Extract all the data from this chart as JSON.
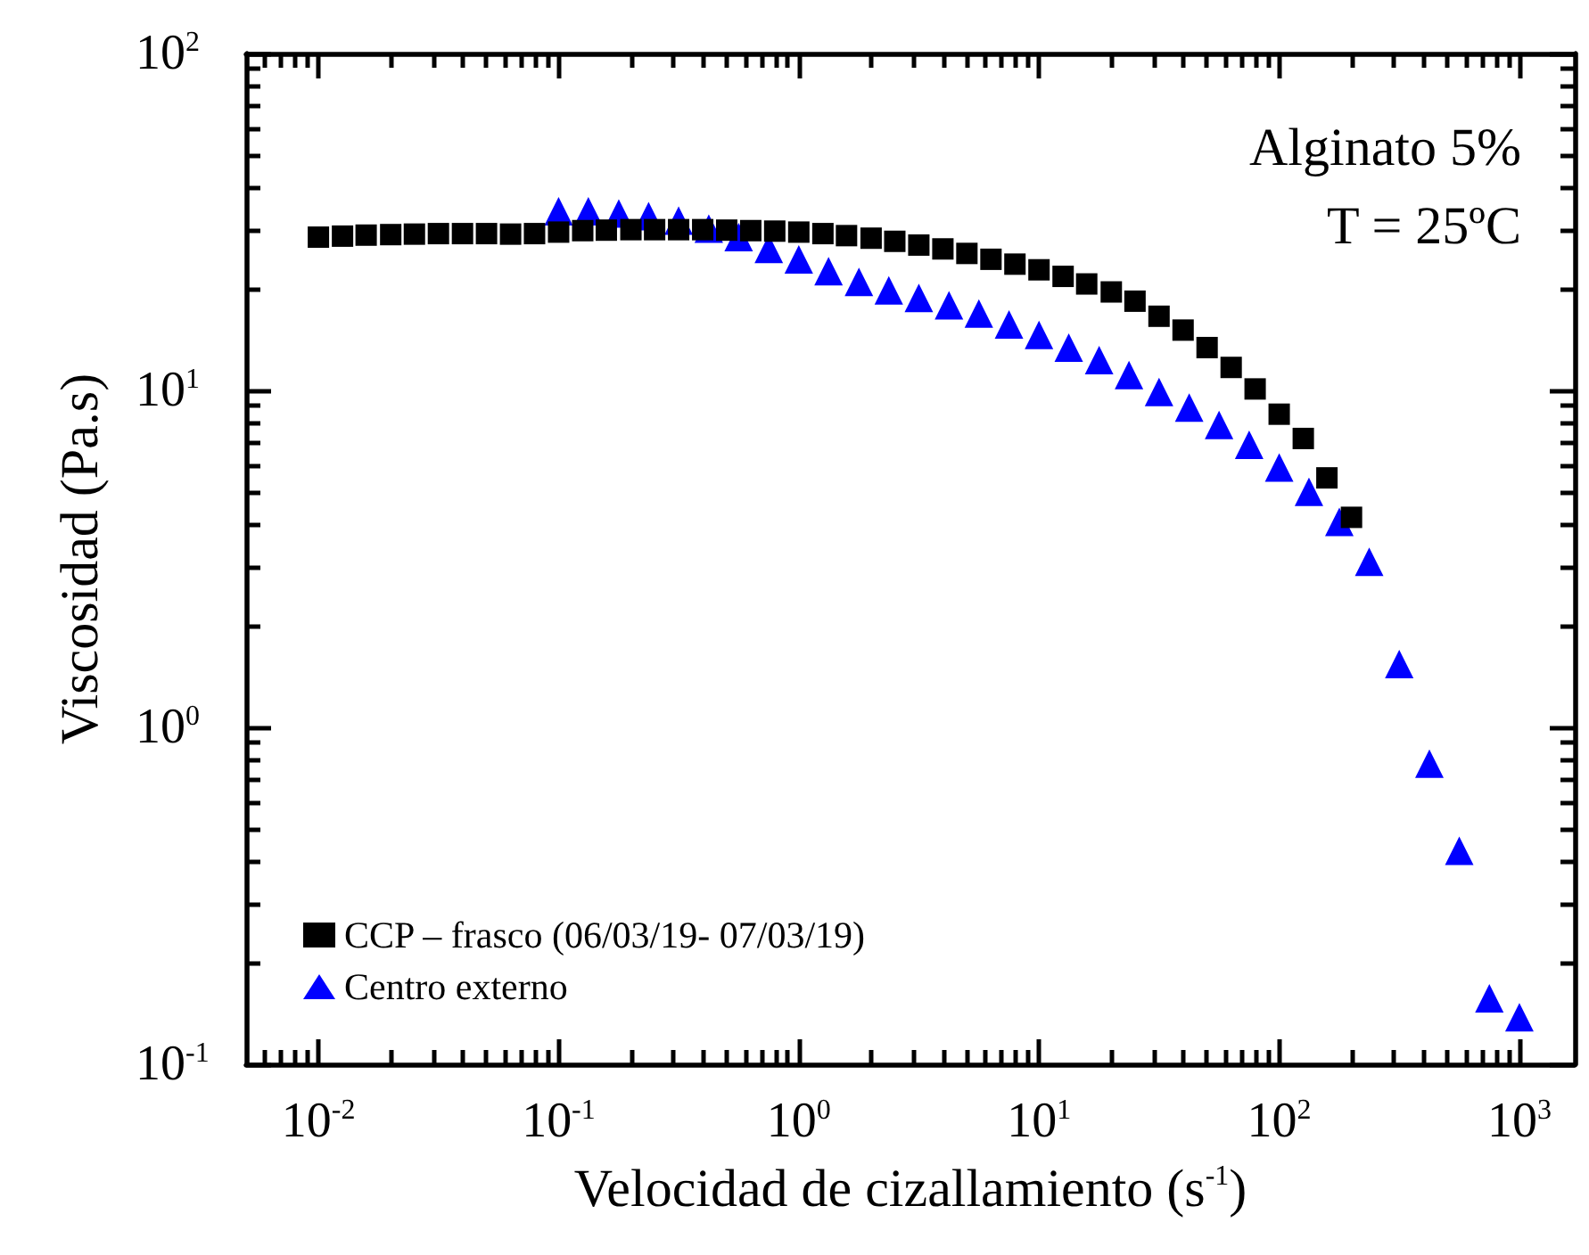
{
  "chart_data": {
    "type": "scatter",
    "xlabel": "Velocidad de cizallamiento (s$^{-1}$)",
    "ylabel": "Viscosidad (Pa.s)",
    "annotations": [
      "Alginato 5%",
      "T = 25ºC"
    ],
    "log": "xy",
    "grid": false,
    "legend": "bottom left",
    "xlim": [
      0.005,
      1700
    ],
    "ylim": [
      0.1,
      100
    ],
    "xticks": [
      {
        "value": 0.006,
        "label": null
      },
      {
        "value": 0.007,
        "label": null
      },
      {
        "value": 0.008,
        "label": null
      },
      {
        "value": 0.009,
        "label": null
      },
      {
        "value": 0.01,
        "label": "10$^{-2}$"
      },
      {
        "value": 0.02,
        "label": null
      },
      {
        "value": 0.03,
        "label": null
      },
      {
        "value": 0.04,
        "label": null
      },
      {
        "value": 0.05,
        "label": null
      },
      {
        "value": 0.06,
        "label": null
      },
      {
        "value": 0.07,
        "label": null
      },
      {
        "value": 0.08,
        "label": null
      },
      {
        "value": 0.09,
        "label": null
      },
      {
        "value": 0.1,
        "label": "10$^{-1}$"
      },
      {
        "value": 0.2,
        "label": null
      },
      {
        "value": 0.3,
        "label": null
      },
      {
        "value": 0.4,
        "label": null
      },
      {
        "value": 0.5,
        "label": null
      },
      {
        "value": 0.6,
        "label": null
      },
      {
        "value": 0.7,
        "label": null
      },
      {
        "value": 0.8,
        "label": null
      },
      {
        "value": 0.9,
        "label": null
      },
      {
        "value": 1,
        "label": "10$^{0}$"
      },
      {
        "value": 2,
        "label": null
      },
      {
        "value": 3,
        "label": null
      },
      {
        "value": 4,
        "label": null
      },
      {
        "value": 5,
        "label": null
      },
      {
        "value": 6,
        "label": null
      },
      {
        "value": 7,
        "label": null
      },
      {
        "value": 8,
        "label": null
      },
      {
        "value": 9,
        "label": null
      },
      {
        "value": 10,
        "label": "10$^{1}$"
      },
      {
        "value": 20,
        "label": null
      },
      {
        "value": 30,
        "label": null
      },
      {
        "value": 40,
        "label": null
      },
      {
        "value": 50,
        "label": null
      },
      {
        "value": 60,
        "label": null
      },
      {
        "value": 70,
        "label": null
      },
      {
        "value": 80,
        "label": null
      },
      {
        "value": 90,
        "label": null
      },
      {
        "value": 100,
        "label": "10$^{2}$"
      },
      {
        "value": 200,
        "label": null
      },
      {
        "value": 300,
        "label": null
      },
      {
        "value": 400,
        "label": null
      },
      {
        "value": 500,
        "label": null
      },
      {
        "value": 600,
        "label": null
      },
      {
        "value": 700,
        "label": null
      },
      {
        "value": 800,
        "label": null
      },
      {
        "value": 900,
        "label": null
      },
      {
        "value": 1000,
        "label": "10$^{3}$"
      }
    ],
    "yticks": [
      {
        "value": 0.1,
        "label": "10$^{-1}$"
      },
      {
        "value": 0.2,
        "label": null
      },
      {
        "value": 0.3,
        "label": null
      },
      {
        "value": 0.4,
        "label": null
      },
      {
        "value": 0.5,
        "label": null
      },
      {
        "value": 0.6,
        "label": null
      },
      {
        "value": 0.7,
        "label": null
      },
      {
        "value": 0.8,
        "label": null
      },
      {
        "value": 0.9,
        "label": null
      },
      {
        "value": 1,
        "label": "10$^{0}$"
      },
      {
        "value": 2,
        "label": null
      },
      {
        "value": 3,
        "label": null
      },
      {
        "value": 4,
        "label": null
      },
      {
        "value": 5,
        "label": null
      },
      {
        "value": 6,
        "label": null
      },
      {
        "value": 7,
        "label": null
      },
      {
        "value": 8,
        "label": null
      },
      {
        "value": 9,
        "label": null
      },
      {
        "value": 10,
        "label": "10$^{1}$"
      },
      {
        "value": 20,
        "label": null
      },
      {
        "value": 30,
        "label": null
      },
      {
        "value": 40,
        "label": null
      },
      {
        "value": 50,
        "label": null
      },
      {
        "value": 60,
        "label": null
      },
      {
        "value": 70,
        "label": null
      },
      {
        "value": 80,
        "label": null
      },
      {
        "value": 90,
        "label": null
      },
      {
        "value": 100,
        "label": "10$^{2}$"
      }
    ],
    "series": [
      {
        "name": "CCP – frasco (06/03/19- 07/03/19)",
        "color": "#000000",
        "marker": "square",
        "x": [
          0.01,
          0.0126,
          0.0158,
          0.02,
          0.0251,
          0.0316,
          0.0398,
          0.0501,
          0.0631,
          0.0794,
          0.1,
          0.126,
          0.158,
          0.2,
          0.251,
          0.316,
          0.398,
          0.501,
          0.631,
          0.794,
          1,
          1.26,
          1.58,
          2,
          2.51,
          3.16,
          3.98,
          5.01,
          6.31,
          7.94,
          10,
          12.6,
          15.8,
          20,
          25.1,
          31.6,
          39.8,
          50.1,
          63.1,
          79.4,
          100,
          126,
          158,
          200
        ],
        "values": [
          28.5,
          28.7,
          28.9,
          29.0,
          29.1,
          29.2,
          29.2,
          29.2,
          29.1,
          29.2,
          29.5,
          29.8,
          29.9,
          30.0,
          30.0,
          30.0,
          30.0,
          29.9,
          29.8,
          29.7,
          29.5,
          29.2,
          28.8,
          28.3,
          27.7,
          27.0,
          26.3,
          25.5,
          24.5,
          23.7,
          22.8,
          21.8,
          20.7,
          19.6,
          18.4,
          16.6,
          15.1,
          13.4,
          11.7,
          10.1,
          8.5,
          7.2,
          5.5,
          4.2
        ]
      },
      {
        "name": "Centro externo",
        "color": "#0000ff",
        "marker": "triangle",
        "x": [
          0.1,
          0.133,
          0.178,
          0.237,
          0.316,
          0.422,
          0.562,
          0.75,
          1,
          1.33,
          1.78,
          2.37,
          3.16,
          4.22,
          5.62,
          7.5,
          10,
          13.3,
          17.8,
          23.7,
          31.6,
          42.2,
          56.2,
          75,
          100,
          133,
          178,
          237,
          316,
          422,
          562,
          750,
          1000
        ],
        "values": [
          34,
          34,
          33.5,
          32.9,
          31.9,
          30.2,
          28.5,
          26.3,
          24.5,
          22.6,
          21.0,
          19.8,
          18.8,
          17.9,
          16.9,
          15.7,
          14.6,
          13.4,
          12.3,
          11.1,
          9.9,
          8.9,
          7.9,
          6.9,
          5.9,
          5.0,
          4.07,
          3.1,
          1.54,
          0.78,
          0.43,
          0.157,
          0.138
        ]
      }
    ]
  }
}
